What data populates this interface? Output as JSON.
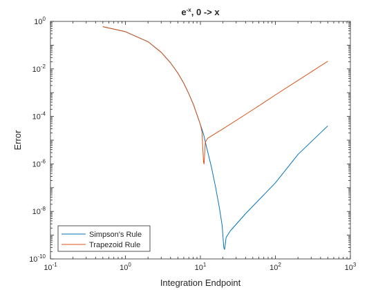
{
  "chart_data": {
    "type": "line",
    "title": {
      "base": "e",
      "sup": "-x",
      "rest": ", 0 -> x"
    },
    "xlabel": "Integration Endpoint",
    "ylabel": "Error",
    "xscale": "log",
    "yscale": "log",
    "xlim": [
      0.1,
      1000
    ],
    "ylim": [
      1e-10,
      1
    ],
    "xticks": [
      {
        "base": "10",
        "exp": "-1",
        "value": 0.1
      },
      {
        "base": "10",
        "exp": "0",
        "value": 1
      },
      {
        "base": "10",
        "exp": "1",
        "value": 10
      },
      {
        "base": "10",
        "exp": "2",
        "value": 100
      },
      {
        "base": "10",
        "exp": "3",
        "value": 1000
      }
    ],
    "yticks": [
      {
        "base": "10",
        "exp": "0",
        "value": 1
      },
      {
        "base": "10",
        "exp": "-2",
        "value": 0.01
      },
      {
        "base": "10",
        "exp": "-4",
        "value": 0.0001
      },
      {
        "base": "10",
        "exp": "-6",
        "value": 1e-06
      },
      {
        "base": "10",
        "exp": "-8",
        "value": 1e-08
      },
      {
        "base": "10",
        "exp": "-10",
        "value": 1e-10
      }
    ],
    "grid": false,
    "legend_position": "bottom-left",
    "series": [
      {
        "name": "Simpson's Rule",
        "color": "#0072BD",
        "points": [
          [
            0.5,
            0.6
          ],
          [
            1.0,
            0.37
          ],
          [
            2.0,
            0.14
          ],
          [
            3.0,
            0.05
          ],
          [
            4.0,
            0.018
          ],
          [
            5.0,
            0.0067
          ],
          [
            6.0,
            0.0025
          ],
          [
            7.0,
            0.0009
          ],
          [
            8.0,
            0.00034
          ],
          [
            9.0,
            0.00012
          ],
          [
            10.0,
            4.5e-05
          ],
          [
            11.0,
            1.8e-05
          ],
          [
            12.0,
            5.5e-06
          ],
          [
            14.0,
            7.5e-07
          ],
          [
            16.0,
            1e-07
          ],
          [
            18.0,
            1.3e-08
          ],
          [
            19.5,
            2.5e-09
          ],
          [
            20.5,
            3e-10
          ],
          [
            21.0,
            2.5e-10
          ],
          [
            22.0,
            8e-10
          ],
          [
            25.0,
            1.5e-09
          ],
          [
            40.0,
            8e-09
          ],
          [
            100.0,
            1.6e-07
          ],
          [
            200.0,
            2.5e-06
          ],
          [
            500.0,
            4e-05
          ]
        ]
      },
      {
        "name": "Trapezoid Rule",
        "color": "#D95319",
        "points": [
          [
            0.5,
            0.6
          ],
          [
            1.0,
            0.37
          ],
          [
            2.0,
            0.14
          ],
          [
            3.0,
            0.05
          ],
          [
            4.0,
            0.018
          ],
          [
            5.0,
            0.0067
          ],
          [
            6.0,
            0.0025
          ],
          [
            7.0,
            0.0009
          ],
          [
            8.0,
            0.00034
          ],
          [
            9.0,
            0.00012
          ],
          [
            10.0,
            4.5e-05
          ],
          [
            10.5,
            2.2e-05
          ],
          [
            11.0,
            1.2e-06
          ],
          [
            11.2,
            1e-06
          ],
          [
            11.6,
            8e-06
          ],
          [
            12.5,
            1.2e-05
          ],
          [
            14.0,
            1.5e-05
          ],
          [
            20.0,
            3e-05
          ],
          [
            50.0,
            0.00019
          ],
          [
            100.0,
            0.0008
          ],
          [
            200.0,
            0.0033
          ],
          [
            500.0,
            0.021
          ]
        ]
      }
    ]
  }
}
